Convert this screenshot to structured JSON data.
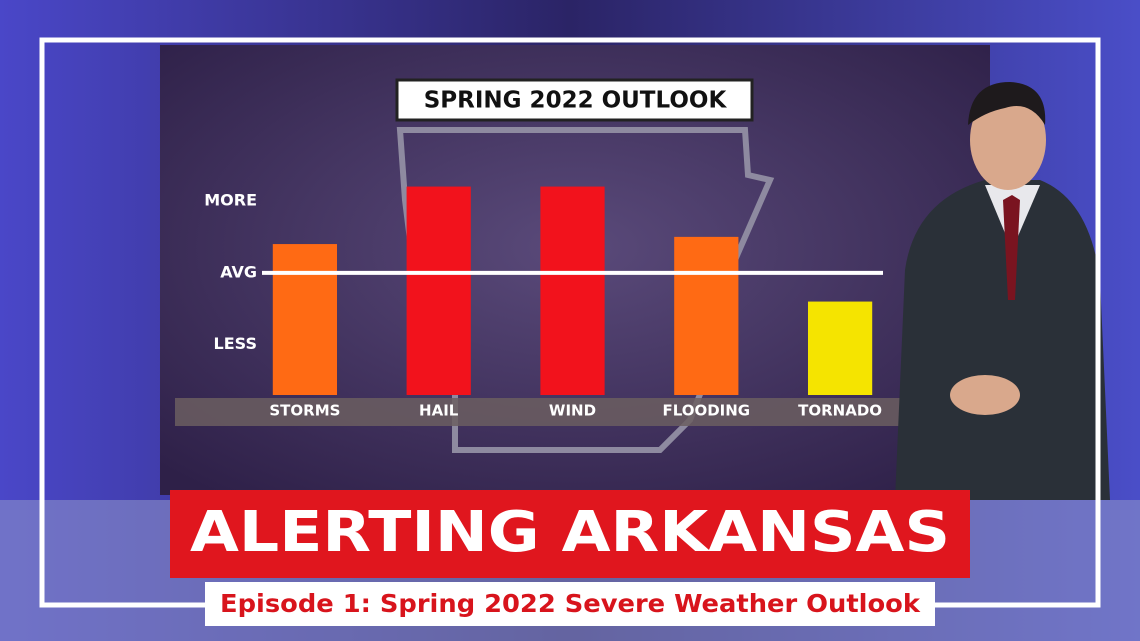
{
  "chart_data": {
    "type": "bar",
    "title": "SPRING 2022 OUTLOOK",
    "categories": [
      "STORMS",
      "HAIL",
      "WIND",
      "FLOODING",
      "TORNADO"
    ],
    "values": [
      0.4,
      1.2,
      1.2,
      0.5,
      -0.4
    ],
    "colors": [
      "#ff6a14",
      "#f2121c",
      "#f2121c",
      "#ff6a14",
      "#f5e400"
    ],
    "ylim": [
      -1.7,
      1.5
    ],
    "yticks": [
      {
        "value": -1,
        "label": "LESS"
      },
      {
        "value": 0,
        "label": "AVG"
      },
      {
        "value": 1,
        "label": "MORE"
      }
    ],
    "reference_line": 0
  },
  "banner": {
    "title": "ALERTING ARKANSAS",
    "subtitle": "Episode 1: Spring 2022 Severe Weather Outlook"
  }
}
